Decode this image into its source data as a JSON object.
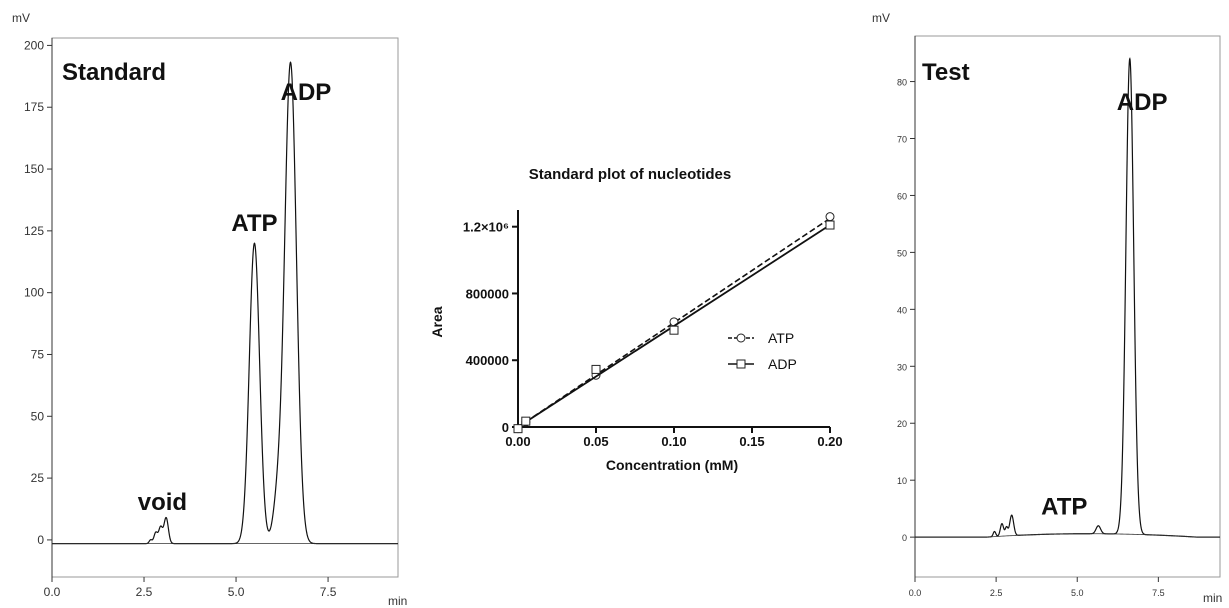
{
  "chart_data": [
    {
      "type": "line",
      "panel": "left",
      "panel_label": "Standard",
      "y_unit": "mV",
      "x_unit": "min",
      "xlim": [
        0,
        9.4
      ],
      "ylim": [
        -15,
        203
      ],
      "x_ticks": [
        0.0,
        2.5,
        5.0,
        7.5
      ],
      "x_tick_labels": [
        "0.0",
        "2.5",
        "5.0",
        "7.5"
      ],
      "y_ticks": [
        0,
        25,
        50,
        75,
        100,
        125,
        150,
        175,
        200
      ],
      "y_tick_labels": [
        "0",
        "25",
        "50",
        "75",
        "100",
        "125",
        "150",
        "175",
        "200"
      ],
      "baseline": -1.5,
      "peaks": [
        {
          "x": 2.68,
          "height": 1.5,
          "width": 0.04
        },
        {
          "x": 2.82,
          "height": 4.5,
          "width": 0.05
        },
        {
          "x": 2.95,
          "height": 6.5,
          "width": 0.05
        },
        {
          "x": 3.1,
          "height": 10.5,
          "width": 0.06
        },
        {
          "x": 5.5,
          "height": 121.5,
          "width": 0.14
        },
        {
          "x": 6.12,
          "height": 15,
          "width": 0.12
        },
        {
          "x": 6.48,
          "height": 194.5,
          "width": 0.16
        }
      ],
      "annotations": [
        {
          "text": "void",
          "x": 3.0,
          "y": 12
        },
        {
          "text": "ATP",
          "x": 5.5,
          "y": 125
        },
        {
          "text": "ADP",
          "x": 6.9,
          "y": 178
        }
      ]
    },
    {
      "type": "scatter",
      "panel": "middle",
      "title": "Standard plot of nucleotides",
      "xlabel": "Concentration (mM)",
      "ylabel": "Area",
      "xlim": [
        0,
        0.2
      ],
      "ylim": [
        0,
        1300000
      ],
      "x_ticks": [
        0.0,
        0.05,
        0.1,
        0.15,
        0.2
      ],
      "x_tick_labels": [
        "0.00",
        "0.05",
        "0.10",
        "0.15",
        "0.20"
      ],
      "y_ticks": [
        0,
        400000,
        800000,
        1200000
      ],
      "y_tick_labels": [
        "0",
        "400000",
        "800000",
        "1.2×10⁶"
      ],
      "legend_position": "right",
      "series": [
        {
          "name": "ATP",
          "marker": "circle",
          "line": "dashed",
          "x": [
            0.0,
            0.005,
            0.05,
            0.1,
            0.2
          ],
          "y": [
            -10000,
            30000,
            310000,
            630000,
            1260000
          ],
          "fit": [
            [
              0.0,
              0
            ],
            [
              0.2,
              1250000
            ]
          ]
        },
        {
          "name": "ADP",
          "marker": "square",
          "line": "solid",
          "x": [
            0.0,
            0.005,
            0.05,
            0.1,
            0.2
          ],
          "y": [
            -10000,
            35000,
            345000,
            580000,
            1210000
          ],
          "fit": [
            [
              0.0,
              0
            ],
            [
              0.2,
              1210000
            ]
          ]
        }
      ]
    },
    {
      "type": "line",
      "panel": "right",
      "panel_label": "Test",
      "y_unit": "mV",
      "x_unit": "min",
      "xlim": [
        0,
        9.4
      ],
      "ylim": [
        -7,
        88
      ],
      "x_ticks": [
        0.0,
        2.5,
        5.0,
        7.5
      ],
      "x_tick_labels": [
        "0.0",
        "2.5",
        "5.0",
        "7.5"
      ],
      "y_ticks": [
        0,
        10,
        20,
        30,
        40,
        50,
        60,
        70,
        80
      ],
      "y_tick_labels": [
        "0",
        "10",
        "20",
        "30",
        "40",
        "50",
        "60",
        "70",
        "80"
      ],
      "baseline": 0,
      "baseline_bump": {
        "start": 2.2,
        "center": 5.3,
        "end": 8.7,
        "height": 0.6
      },
      "peaks": [
        {
          "x": 2.45,
          "height": 0.9,
          "width": 0.04
        },
        {
          "x": 2.68,
          "height": 2.2,
          "width": 0.05
        },
        {
          "x": 2.82,
          "height": 1.5,
          "width": 0.04
        },
        {
          "x": 2.98,
          "height": 3.6,
          "width": 0.06
        },
        {
          "x": 5.65,
          "height": 1.4,
          "width": 0.07
        },
        {
          "x": 6.62,
          "height": 83.5,
          "width": 0.12
        }
      ],
      "annotations": [
        {
          "text": "ATP",
          "x": 4.6,
          "y": 4
        },
        {
          "text": "ADP",
          "x": 7.0,
          "y": 75
        }
      ]
    }
  ]
}
